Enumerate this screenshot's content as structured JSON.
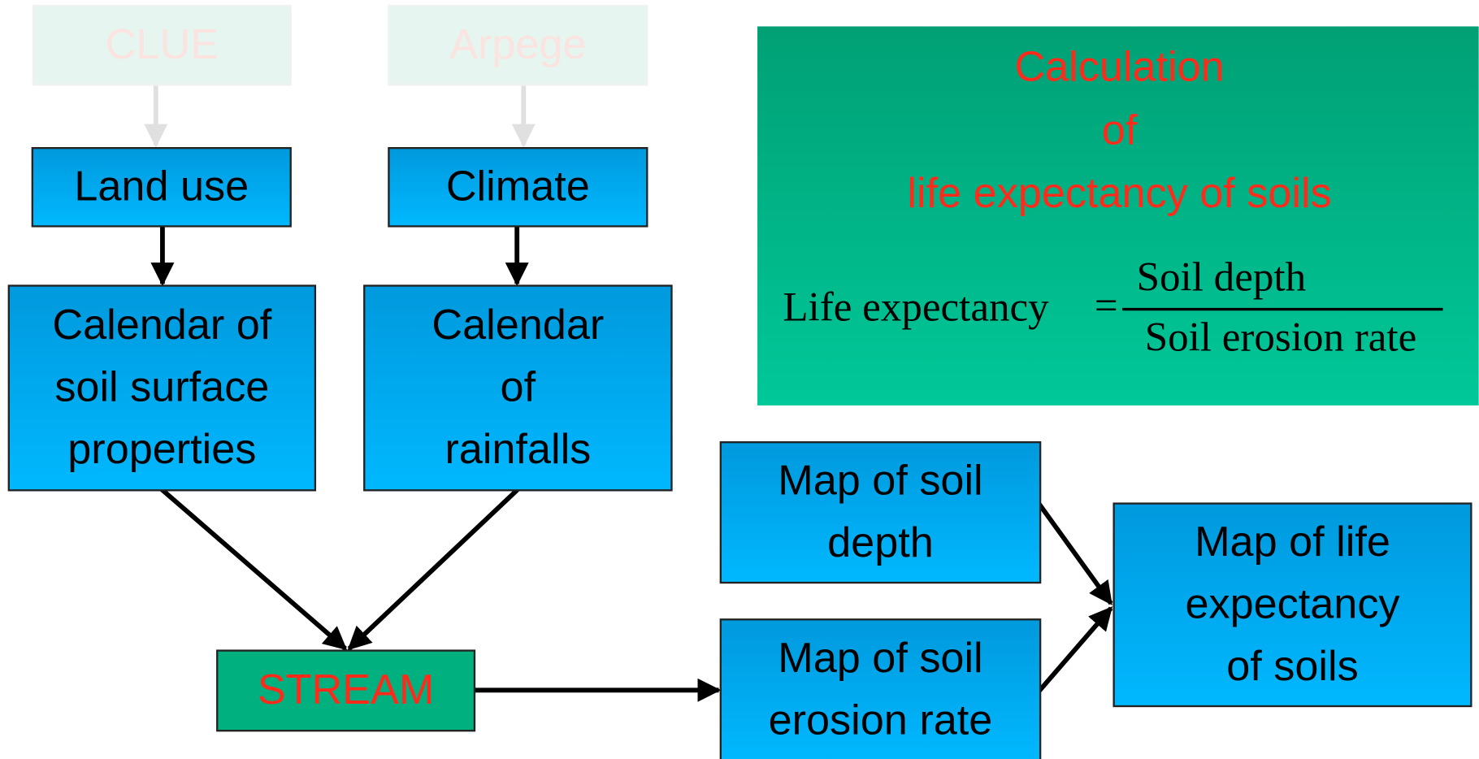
{
  "nodes": [
    {
      "lines": [
        "CLUE"
      ]
    },
    {
      "lines": [
        "Arpege"
      ]
    },
    {
      "lines": [
        "Land use"
      ]
    },
    {
      "lines": [
        "Climate"
      ]
    },
    {
      "lines": [
        "Calendar of",
        "soil surface",
        "properties"
      ]
    },
    {
      "lines": [
        "Calendar",
        "of",
        "rainfalls"
      ]
    },
    {
      "lines": [
        "STREAM"
      ]
    },
    {
      "lines": [
        "Map of soil",
        "depth"
      ]
    },
    {
      "lines": [
        "Map of soil",
        "erosion rate"
      ]
    },
    {
      "lines": [
        "Map of life",
        "expectancy",
        "of soils"
      ]
    }
  ],
  "panel": {
    "title": [
      "Calculation",
      "of",
      "life expectancy of soils"
    ],
    "formula": {
      "left": "Life expectancy",
      "equals": "=",
      "numerator": "Soil depth",
      "denominator": "Soil erosion rate"
    }
  }
}
